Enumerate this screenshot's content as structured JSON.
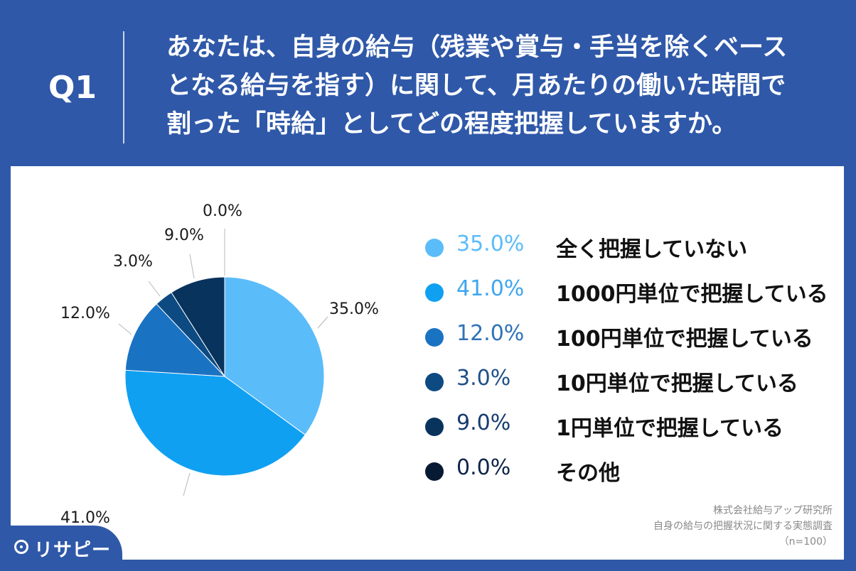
{
  "header": {
    "q_label": "Q1",
    "question_lines": [
      "あなたは、自身の給与（残業や賞与・手当を除くベース",
      "となる給与を指す）に関して、月あたりの働いた時間で",
      "割った「時給」としてどの程度把握していますか。"
    ]
  },
  "chart_data": {
    "type": "pie",
    "slices": [
      {
        "label": "全く把握していない",
        "value": 35.0,
        "pct_text": "35.0%",
        "color": "#5bbcfa"
      },
      {
        "label": "1000円単位で把握している",
        "value": 41.0,
        "pct_text": "41.0%",
        "color": "#10a0f2"
      },
      {
        "label": "100円単位で把握している",
        "value": 12.0,
        "pct_text": "12.0%",
        "color": "#1a72c2"
      },
      {
        "label": "10円単位で把握している",
        "value": 3.0,
        "pct_text": "3.0%",
        "color": "#0d4a82"
      },
      {
        "label": "1円単位で把握している",
        "value": 9.0,
        "pct_text": "9.0%",
        "color": "#08335c"
      },
      {
        "label": "その他",
        "value": 0.0,
        "pct_text": "0.0%",
        "color": "#061a33"
      }
    ]
  },
  "legend_pct_colors": [
    "#5bbcfa",
    "#3ea6ee",
    "#2f72b8",
    "#1f4f88",
    "#163c6e",
    "#0d2547"
  ],
  "source": {
    "line1": "株式会社給与アップ研究所",
    "line2": "自身の給与の把握状況に関する実態調査",
    "line3": "（n=100）"
  },
  "logo": {
    "text": "リサピー",
    "icon": "pin-icon"
  }
}
